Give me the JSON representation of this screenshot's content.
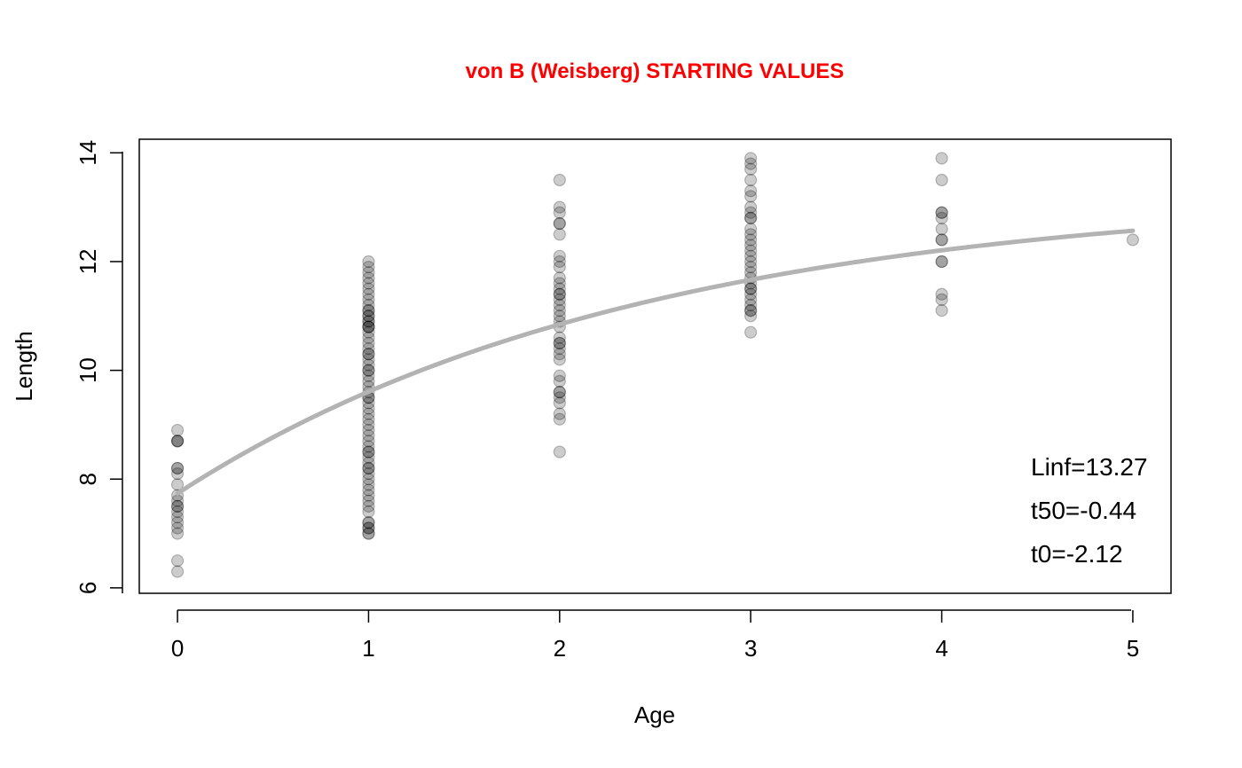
{
  "chart_data": {
    "type": "scatter",
    "title": "von B (Weisberg) STARTING VALUES",
    "title_color": "#ff0000",
    "xlabel": "Age",
    "ylabel": "Length",
    "xlim": [
      -0.2,
      5.2
    ],
    "ylim": [
      5.9,
      14.25
    ],
    "x_ticks": [
      0,
      1,
      2,
      3,
      4,
      5
    ],
    "y_ticks": [
      6,
      8,
      10,
      12,
      14
    ],
    "point_color": "#000000",
    "point_opacity": 0.2,
    "curve_color": "#b3b3b3",
    "grid": false,
    "annotations": [
      "Linf=13.27",
      "t50=-0.44",
      "t0=-2.12"
    ],
    "annotation_placement": "bottom-right",
    "model": {
      "Linf": 13.27,
      "t50": -0.44,
      "t0": -2.12
    },
    "points": [
      [
        0,
        8.9
      ],
      [
        0,
        8.7
      ],
      [
        0,
        8.7
      ],
      [
        0,
        8.7
      ],
      [
        0,
        8.2
      ],
      [
        0,
        8.2
      ],
      [
        0,
        8.1
      ],
      [
        0,
        7.9
      ],
      [
        0,
        7.7
      ],
      [
        0,
        7.6
      ],
      [
        0,
        7.5
      ],
      [
        0,
        7.5
      ],
      [
        0,
        7.4
      ],
      [
        0,
        7.3
      ],
      [
        0,
        7.2
      ],
      [
        0,
        7.1
      ],
      [
        0,
        7.0
      ],
      [
        0,
        6.5
      ],
      [
        0,
        6.3
      ],
      [
        1,
        12.0
      ],
      [
        1,
        11.9
      ],
      [
        1,
        11.8
      ],
      [
        1,
        11.7
      ],
      [
        1,
        11.6
      ],
      [
        1,
        11.5
      ],
      [
        1,
        11.4
      ],
      [
        1,
        11.3
      ],
      [
        1,
        11.2
      ],
      [
        1,
        11.1
      ],
      [
        1,
        11.1
      ],
      [
        1,
        11.0
      ],
      [
        1,
        11.0
      ],
      [
        1,
        10.9
      ],
      [
        1,
        10.9
      ],
      [
        1,
        10.8
      ],
      [
        1,
        10.8
      ],
      [
        1,
        10.8
      ],
      [
        1,
        10.7
      ],
      [
        1,
        10.6
      ],
      [
        1,
        10.5
      ],
      [
        1,
        10.4
      ],
      [
        1,
        10.3
      ],
      [
        1,
        10.3
      ],
      [
        1,
        10.2
      ],
      [
        1,
        10.1
      ],
      [
        1,
        10.0
      ],
      [
        1,
        10.0
      ],
      [
        1,
        9.9
      ],
      [
        1,
        9.8
      ],
      [
        1,
        9.7
      ],
      [
        1,
        9.6
      ],
      [
        1,
        9.5
      ],
      [
        1,
        9.5
      ],
      [
        1,
        9.4
      ],
      [
        1,
        9.3
      ],
      [
        1,
        9.2
      ],
      [
        1,
        9.1
      ],
      [
        1,
        9.0
      ],
      [
        1,
        8.9
      ],
      [
        1,
        8.8
      ],
      [
        1,
        8.7
      ],
      [
        1,
        8.6
      ],
      [
        1,
        8.5
      ],
      [
        1,
        8.5
      ],
      [
        1,
        8.4
      ],
      [
        1,
        8.3
      ],
      [
        1,
        8.2
      ],
      [
        1,
        8.2
      ],
      [
        1,
        8.1
      ],
      [
        1,
        8.0
      ],
      [
        1,
        7.9
      ],
      [
        1,
        7.8
      ],
      [
        1,
        7.7
      ],
      [
        1,
        7.6
      ],
      [
        1,
        7.5
      ],
      [
        1,
        7.4
      ],
      [
        1,
        7.2
      ],
      [
        1,
        7.2
      ],
      [
        1,
        7.1
      ],
      [
        1,
        7.1
      ],
      [
        1,
        7.0
      ],
      [
        1,
        7.0
      ],
      [
        2,
        13.5
      ],
      [
        2,
        13.0
      ],
      [
        2,
        12.9
      ],
      [
        2,
        12.7
      ],
      [
        2,
        12.7
      ],
      [
        2,
        12.5
      ],
      [
        2,
        12.1
      ],
      [
        2,
        12.0
      ],
      [
        2,
        11.9
      ],
      [
        2,
        11.7
      ],
      [
        2,
        11.6
      ],
      [
        2,
        11.5
      ],
      [
        2,
        11.4
      ],
      [
        2,
        11.4
      ],
      [
        2,
        11.3
      ],
      [
        2,
        11.2
      ],
      [
        2,
        11.1
      ],
      [
        2,
        11.0
      ],
      [
        2,
        10.9
      ],
      [
        2,
        10.8
      ],
      [
        2,
        10.6
      ],
      [
        2,
        10.5
      ],
      [
        2,
        10.5
      ],
      [
        2,
        10.4
      ],
      [
        2,
        10.3
      ],
      [
        2,
        10.2
      ],
      [
        2,
        9.9
      ],
      [
        2,
        9.8
      ],
      [
        2,
        9.6
      ],
      [
        2,
        9.6
      ],
      [
        2,
        9.5
      ],
      [
        2,
        9.4
      ],
      [
        2,
        9.2
      ],
      [
        2,
        9.1
      ],
      [
        2,
        8.5
      ],
      [
        3,
        13.9
      ],
      [
        3,
        13.8
      ],
      [
        3,
        13.7
      ],
      [
        3,
        13.5
      ],
      [
        3,
        13.3
      ],
      [
        3,
        13.2
      ],
      [
        3,
        13.0
      ],
      [
        3,
        12.9
      ],
      [
        3,
        12.8
      ],
      [
        3,
        12.8
      ],
      [
        3,
        12.6
      ],
      [
        3,
        12.5
      ],
      [
        3,
        12.4
      ],
      [
        3,
        12.3
      ],
      [
        3,
        12.2
      ],
      [
        3,
        12.1
      ],
      [
        3,
        12.0
      ],
      [
        3,
        11.9
      ],
      [
        3,
        11.8
      ],
      [
        3,
        11.7
      ],
      [
        3,
        11.6
      ],
      [
        3,
        11.5
      ],
      [
        3,
        11.5
      ],
      [
        3,
        11.4
      ],
      [
        3,
        11.3
      ],
      [
        3,
        11.2
      ],
      [
        3,
        11.1
      ],
      [
        3,
        11.1
      ],
      [
        3,
        11.0
      ],
      [
        3,
        10.7
      ],
      [
        4,
        13.9
      ],
      [
        4,
        13.5
      ],
      [
        4,
        12.9
      ],
      [
        4,
        12.9
      ],
      [
        4,
        12.8
      ],
      [
        4,
        12.6
      ],
      [
        4,
        12.4
      ],
      [
        4,
        12.4
      ],
      [
        4,
        12.0
      ],
      [
        4,
        12.0
      ],
      [
        4,
        11.4
      ],
      [
        4,
        11.3
      ],
      [
        4,
        11.1
      ],
      [
        5,
        12.4
      ]
    ]
  }
}
